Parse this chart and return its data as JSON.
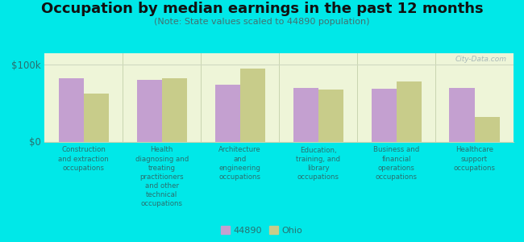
{
  "title": "Occupation by median earnings in the past 12 months",
  "subtitle": "(Note: State values scaled to 44890 population)",
  "categories": [
    "Construction\nand extraction\noccupations",
    "Health\ndiagnosing and\ntreating\npractitioners",
    "Architecture\nand\nengineering\noccupations",
    "Education,\ntraining, and\nlibrary\noccupations",
    "Business and\nfinancial\noperations\noccupations",
    "Healthcare\nsupport\noccupations"
  ],
  "values_44890": [
    82000,
    80000,
    74000,
    70000,
    69000,
    70000
  ],
  "values_ohio": [
    62000,
    82000,
    95000,
    68000,
    78000,
    32000
  ],
  "color_44890": "#c4a0d0",
  "color_ohio": "#c8cc8a",
  "ylim": [
    0,
    115000
  ],
  "ytick_labels": [
    "$0",
    "$100k"
  ],
  "ytick_vals": [
    0,
    100000
  ],
  "background_color": "#00e8e8",
  "plot_bg_color": "#eef5d8",
  "legend_label_44890": "44890",
  "legend_label_ohio": "Ohio",
  "watermark": "City-Data.com",
  "title_fontsize": 13,
  "subtitle_fontsize": 8,
  "bar_width": 0.32,
  "separator_color": "#c8d4b0",
  "grid_color": "#d0d8c0",
  "label_color": "#2a7070",
  "ytick_color": "#2a7070"
}
